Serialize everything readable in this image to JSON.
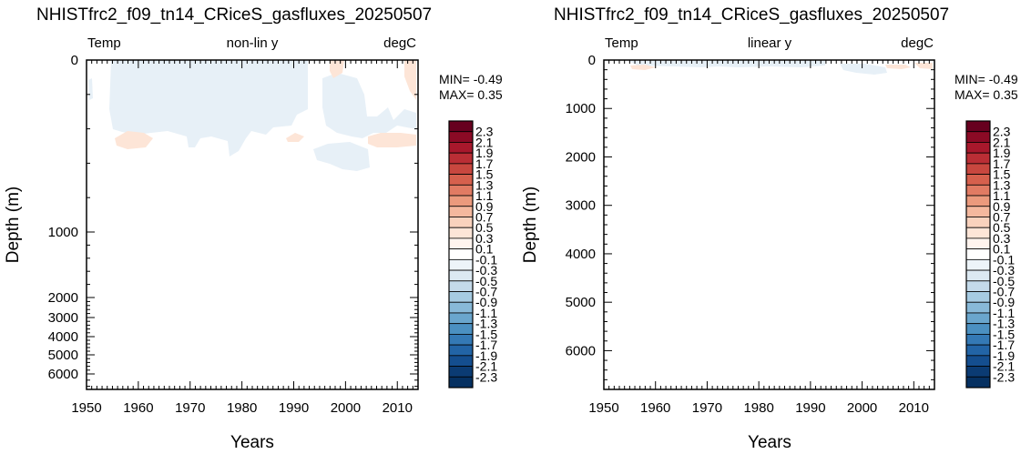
{
  "colorbar": {
    "levels": [
      "2.3",
      "2.1",
      "1.9",
      "1.7",
      "1.5",
      "1.3",
      "1.1",
      "0.9",
      "0.7",
      "0.5",
      "0.3",
      "0.1",
      "-0.1",
      "-0.3",
      "-0.5",
      "-0.7",
      "-0.9",
      "-1.1",
      "-1.3",
      "-1.5",
      "-1.7",
      "-1.9",
      "-2.1",
      "-2.3"
    ],
    "colors": [
      "#67001f",
      "#8b0a25",
      "#a8182c",
      "#ba2e35",
      "#c8473f",
      "#d6604d",
      "#e17b63",
      "#eb9a7d",
      "#f4b89e",
      "#f9d2bd",
      "#fde5d7",
      "#fff4ee",
      "#ffffff",
      "#edf4f9",
      "#dce9f2",
      "#c4daea",
      "#a6cbe2",
      "#88b9d8",
      "#6aa6cd",
      "#4b90c1",
      "#3479b5",
      "#2264a6",
      "#144e8f",
      "#0b3b73",
      "#053061"
    ]
  },
  "chart_data": [
    {
      "type": "heatmap",
      "title": "NHISTfrc2_f09_tn14_CRiceS_gasfluxes_20250507",
      "header_left": "Temp",
      "header_center": "non-lin y",
      "header_right": "degC",
      "xlabel": "Years",
      "ylabel": "Depth (m)",
      "xlim": [
        1950,
        2014
      ],
      "ylim": [
        0,
        6500
      ],
      "x_ticks": [
        "1950",
        "1960",
        "1970",
        "1980",
        "1990",
        "2000",
        "2010"
      ],
      "y_ticks": [
        "0",
        "1000",
        "2000",
        "3000",
        "4000",
        "5000",
        "6000"
      ],
      "min_text": "MIN= -0.49",
      "max_text": "MAX=  0.35"
    },
    {
      "type": "heatmap",
      "title": "NHISTfrc2_f09_tn14_CRiceS_gasfluxes_20250507",
      "header_left": "Temp",
      "header_center": "linear y",
      "header_right": "degC",
      "xlabel": "Years",
      "ylabel": "Depth (m)",
      "xlim": [
        1950,
        2014
      ],
      "ylim": [
        0,
        6800
      ],
      "x_ticks": [
        "1950",
        "1960",
        "1970",
        "1980",
        "1990",
        "2000",
        "2010"
      ],
      "y_ticks": [
        "0",
        "1000",
        "2000",
        "3000",
        "4000",
        "5000",
        "6000"
      ],
      "min_text": "MIN= -0.49",
      "max_text": "MAX=  0.35"
    }
  ]
}
